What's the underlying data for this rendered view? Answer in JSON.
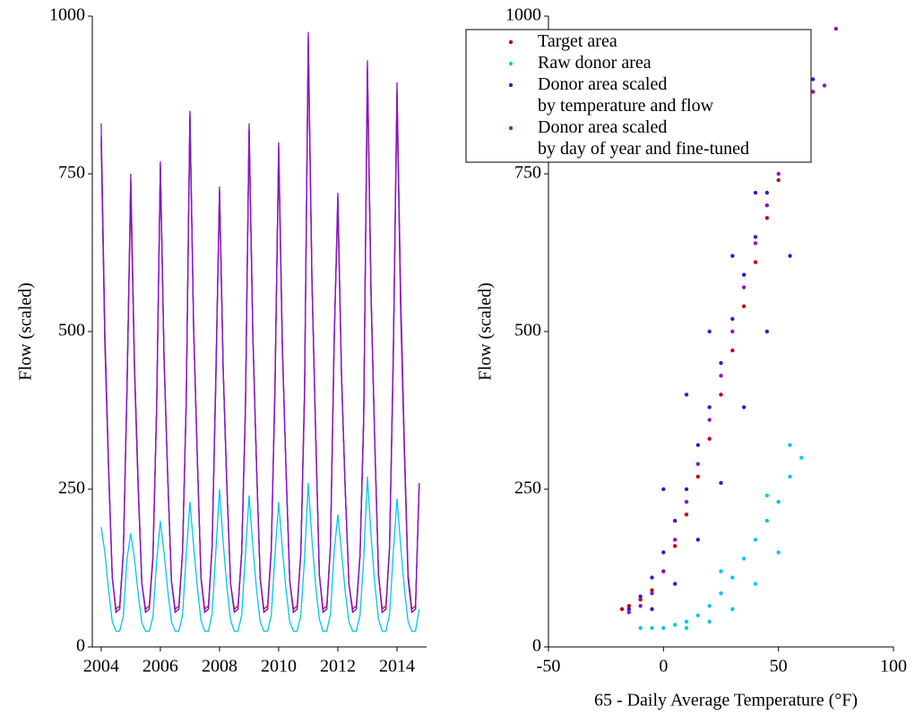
{
  "chart_data": [
    {
      "type": "line",
      "ylabel": "Flow (scaled)",
      "xlim": [
        2003.7,
        2015
      ],
      "xticks": [
        2004,
        2006,
        2008,
        2010,
        2012,
        2014
      ],
      "ylim": [
        0,
        1000
      ],
      "yticks": [
        0,
        250,
        500,
        750,
        1000
      ],
      "x": [
        2004,
        2004.125,
        2004.25,
        2004.375,
        2004.5,
        2004.625,
        2004.75,
        2004.875,
        2005,
        2005.125,
        2005.25,
        2005.375,
        2005.5,
        2005.625,
        2005.75,
        2005.875,
        2006,
        2006.125,
        2006.25,
        2006.375,
        2006.5,
        2006.625,
        2006.75,
        2006.875,
        2007,
        2007.125,
        2007.25,
        2007.375,
        2007.5,
        2007.625,
        2007.75,
        2007.875,
        2008,
        2008.125,
        2008.25,
        2008.375,
        2008.5,
        2008.625,
        2008.75,
        2008.875,
        2009,
        2009.125,
        2009.25,
        2009.375,
        2009.5,
        2009.625,
        2009.75,
        2009.875,
        2010,
        2010.125,
        2010.25,
        2010.375,
        2010.5,
        2010.625,
        2010.75,
        2010.875,
        2011,
        2011.125,
        2011.25,
        2011.375,
        2011.5,
        2011.625,
        2011.75,
        2011.875,
        2012,
        2012.125,
        2012.25,
        2012.375,
        2012.5,
        2012.625,
        2012.75,
        2012.875,
        2013,
        2013.125,
        2013.25,
        2013.375,
        2013.5,
        2013.625,
        2013.75,
        2013.875,
        2014,
        2014.125,
        2014.25,
        2014.375,
        2014.5,
        2014.625,
        2014.75
      ],
      "series": [
        {
          "color": "#00c8e8",
          "values": [
            190,
            150,
            90,
            40,
            25,
            25,
            50,
            140,
            180,
            140,
            85,
            38,
            25,
            25,
            48,
            135,
            200,
            150,
            90,
            40,
            25,
            25,
            50,
            145,
            230,
            160,
            95,
            42,
            25,
            25,
            52,
            150,
            250,
            165,
            95,
            42,
            25,
            25,
            50,
            145,
            240,
            160,
            92,
            40,
            25,
            25,
            50,
            145,
            230,
            155,
            90,
            40,
            25,
            25,
            50,
            140,
            260,
            170,
            98,
            44,
            25,
            25,
            52,
            150,
            210,
            150,
            88,
            40,
            25,
            25,
            50,
            140,
            270,
            175,
            100,
            44,
            25,
            25,
            52,
            150,
            235,
            160,
            92,
            40,
            25,
            25,
            60
          ]
        },
        {
          "color": "#cc0000",
          "values": [
            800,
            480,
            280,
            110,
            60,
            65,
            150,
            420,
            720,
            440,
            250,
            100,
            60,
            65,
            145,
            380,
            760,
            460,
            270,
            105,
            60,
            65,
            150,
            390,
            840,
            505,
            300,
            110,
            60,
            65,
            160,
            430,
            720,
            440,
            255,
            100,
            60,
            65,
            150,
            380,
            820,
            500,
            290,
            110,
            60,
            65,
            155,
            420,
            780,
            470,
            280,
            105,
            60,
            65,
            150,
            410,
            950,
            580,
            340,
            115,
            60,
            65,
            160,
            490,
            700,
            430,
            250,
            100,
            60,
            65,
            145,
            370,
            900,
            550,
            320,
            115,
            60,
            65,
            160,
            470,
            880,
            560,
            320,
            115,
            60,
            65,
            255
          ]
        },
        {
          "color": "#3a14d8",
          "values": [
            810,
            490,
            285,
            112,
            55,
            60,
            152,
            410,
            740,
            445,
            258,
            102,
            55,
            60,
            142,
            378,
            765,
            455,
            268,
            104,
            55,
            60,
            150,
            388,
            845,
            505,
            298,
            108,
            55,
            60,
            158,
            418,
            725,
            435,
            252,
            100,
            55,
            60,
            150,
            372,
            820,
            495,
            288,
            108,
            55,
            60,
            152,
            405,
            795,
            475,
            278,
            104,
            55,
            60,
            150,
            398,
            965,
            580,
            338,
            114,
            55,
            60,
            158,
            478,
            715,
            428,
            248,
            100,
            55,
            60,
            145,
            360,
            920,
            555,
            322,
            114,
            55,
            60,
            158,
            455,
            870,
            530,
            305,
            108,
            55,
            60,
            258
          ]
        },
        {
          "color": "#8c14c8",
          "values": [
            830,
            500,
            290,
            110,
            55,
            60,
            150,
            415,
            750,
            450,
            260,
            100,
            55,
            60,
            140,
            380,
            770,
            460,
            270,
            105,
            55,
            60,
            150,
            390,
            850,
            510,
            300,
            110,
            55,
            60,
            160,
            420,
            730,
            440,
            255,
            100,
            55,
            60,
            150,
            370,
            830,
            500,
            290,
            110,
            55,
            60,
            155,
            410,
            800,
            480,
            280,
            105,
            55,
            60,
            150,
            400,
            975,
            585,
            340,
            115,
            55,
            60,
            160,
            480,
            720,
            430,
            250,
            100,
            55,
            60,
            145,
            360,
            930,
            560,
            325,
            115,
            55,
            60,
            160,
            460,
            895,
            540,
            310,
            110,
            55,
            60,
            260
          ]
        }
      ]
    },
    {
      "type": "scatter",
      "ylabel": "Flow (scaled)",
      "xlabel": "65 - Daily Average Temperature (°F)",
      "xlim": [
        -50,
        100
      ],
      "xticks": [
        -50,
        0,
        50,
        100
      ],
      "ylim": [
        0,
        1000
      ],
      "yticks": [
        0,
        250,
        500,
        750,
        1000
      ],
      "legend": "upper left",
      "series": [
        {
          "name": "Target area",
          "color": "#cc0000",
          "x": [
            -18,
            -15,
            -10,
            -5,
            0,
            5,
            10,
            15,
            20,
            25,
            30,
            35,
            40,
            45,
            50,
            55,
            60,
            65
          ],
          "values": [
            60,
            65,
            75,
            90,
            120,
            160,
            210,
            270,
            330,
            400,
            470,
            540,
            610,
            680,
            740,
            800,
            850,
            880
          ]
        },
        {
          "name": "Raw donor area",
          "color": "#00c8e8",
          "x": [
            -10,
            -5,
            0,
            5,
            10,
            15,
            20,
            25,
            30,
            35,
            40,
            45,
            50,
            55,
            60,
            20,
            30,
            40,
            50,
            10,
            25,
            45,
            55
          ],
          "values": [
            30,
            30,
            30,
            35,
            40,
            50,
            65,
            85,
            110,
            140,
            170,
            200,
            230,
            270,
            300,
            40,
            60,
            100,
            150,
            30,
            120,
            240,
            320
          ]
        },
        {
          "name": "Donor area scaled\nby temperature and flow",
          "color": "#3a14d8",
          "x": [
            -15,
            -10,
            -5,
            0,
            5,
            10,
            15,
            20,
            25,
            30,
            35,
            40,
            45,
            50,
            55,
            60,
            65,
            -5,
            5,
            15,
            25,
            35,
            45,
            55,
            0,
            10,
            20,
            30,
            40,
            50
          ],
          "values": [
            60,
            80,
            110,
            150,
            200,
            250,
            320,
            380,
            450,
            520,
            590,
            650,
            720,
            780,
            830,
            870,
            900,
            60,
            100,
            170,
            260,
            380,
            500,
            620,
            250,
            400,
            500,
            620,
            720,
            850
          ]
        },
        {
          "name": "Donor area scaled\nby day of year and fine-tuned",
          "color": "#8c14c8",
          "x": [
            -15,
            -10,
            -5,
            0,
            5,
            10,
            15,
            20,
            25,
            30,
            35,
            40,
            45,
            50,
            55,
            60,
            65,
            70,
            75
          ],
          "values": [
            55,
            65,
            85,
            120,
            170,
            230,
            290,
            360,
            430,
            500,
            570,
            640,
            700,
            750,
            800,
            840,
            880,
            890,
            980
          ]
        }
      ]
    }
  ]
}
